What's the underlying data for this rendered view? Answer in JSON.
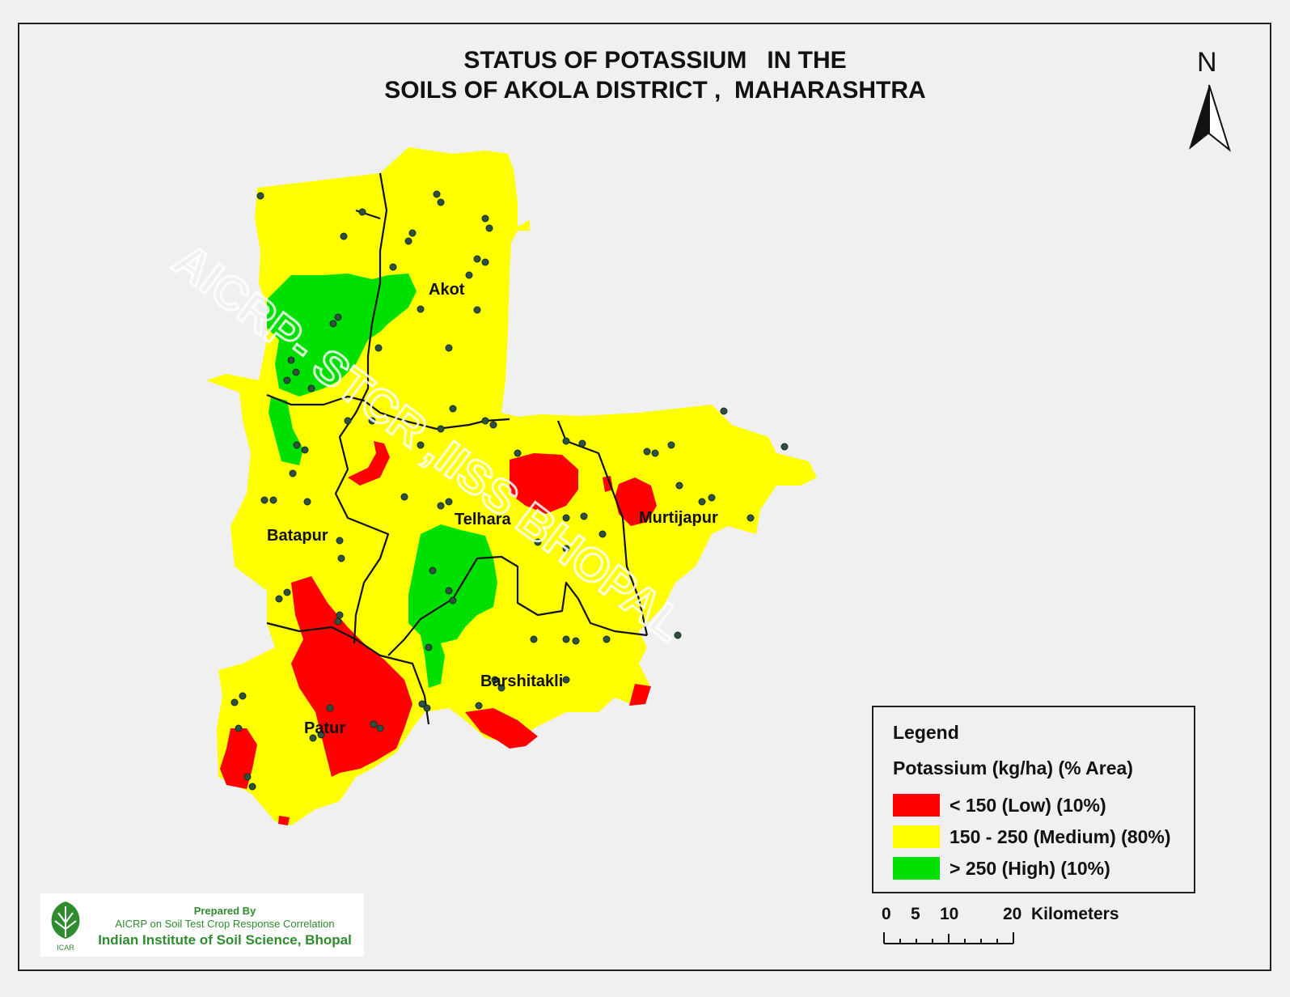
{
  "map": {
    "title": "STATUS OF POTASSIUM   IN THE\nSOILS OF AKOLA DISTRICT ,  MAHARASHTRA",
    "north_label": "N",
    "watermark": "AICRP- STCR ,IISS BHOPAL",
    "districts": [
      "Akot",
      "Telhara",
      "Batapur",
      "Murtijapur",
      "Barshitakli",
      "Patur"
    ],
    "colors": {
      "low": "#ff0000",
      "medium": "#ffff00",
      "high": "#00e000",
      "boundary": "#111111",
      "sample_point": "#2f4f3f"
    }
  },
  "legend": {
    "title": "Legend",
    "subtitle": "Potassium (kg/ha)  (% Area)",
    "items": [
      {
        "label": "< 150 (Low) (10%)",
        "color": "#ff0000"
      },
      {
        "label": "150 - 250 (Medium) (80%)",
        "color": "#ffff00"
      },
      {
        "label": "> 250 (High) (10%)",
        "color": "#00e000"
      }
    ]
  },
  "scale_bar": {
    "ticks": [
      "0",
      "5",
      "10",
      "20"
    ],
    "unit": "Kilometers"
  },
  "credit": {
    "line1": "Prepared By",
    "line2": "AICRP on Soil Test Crop Response Correlation",
    "line3": "Indian Institute of Soil Science, Bhopal",
    "logo_text": "ICAR"
  }
}
